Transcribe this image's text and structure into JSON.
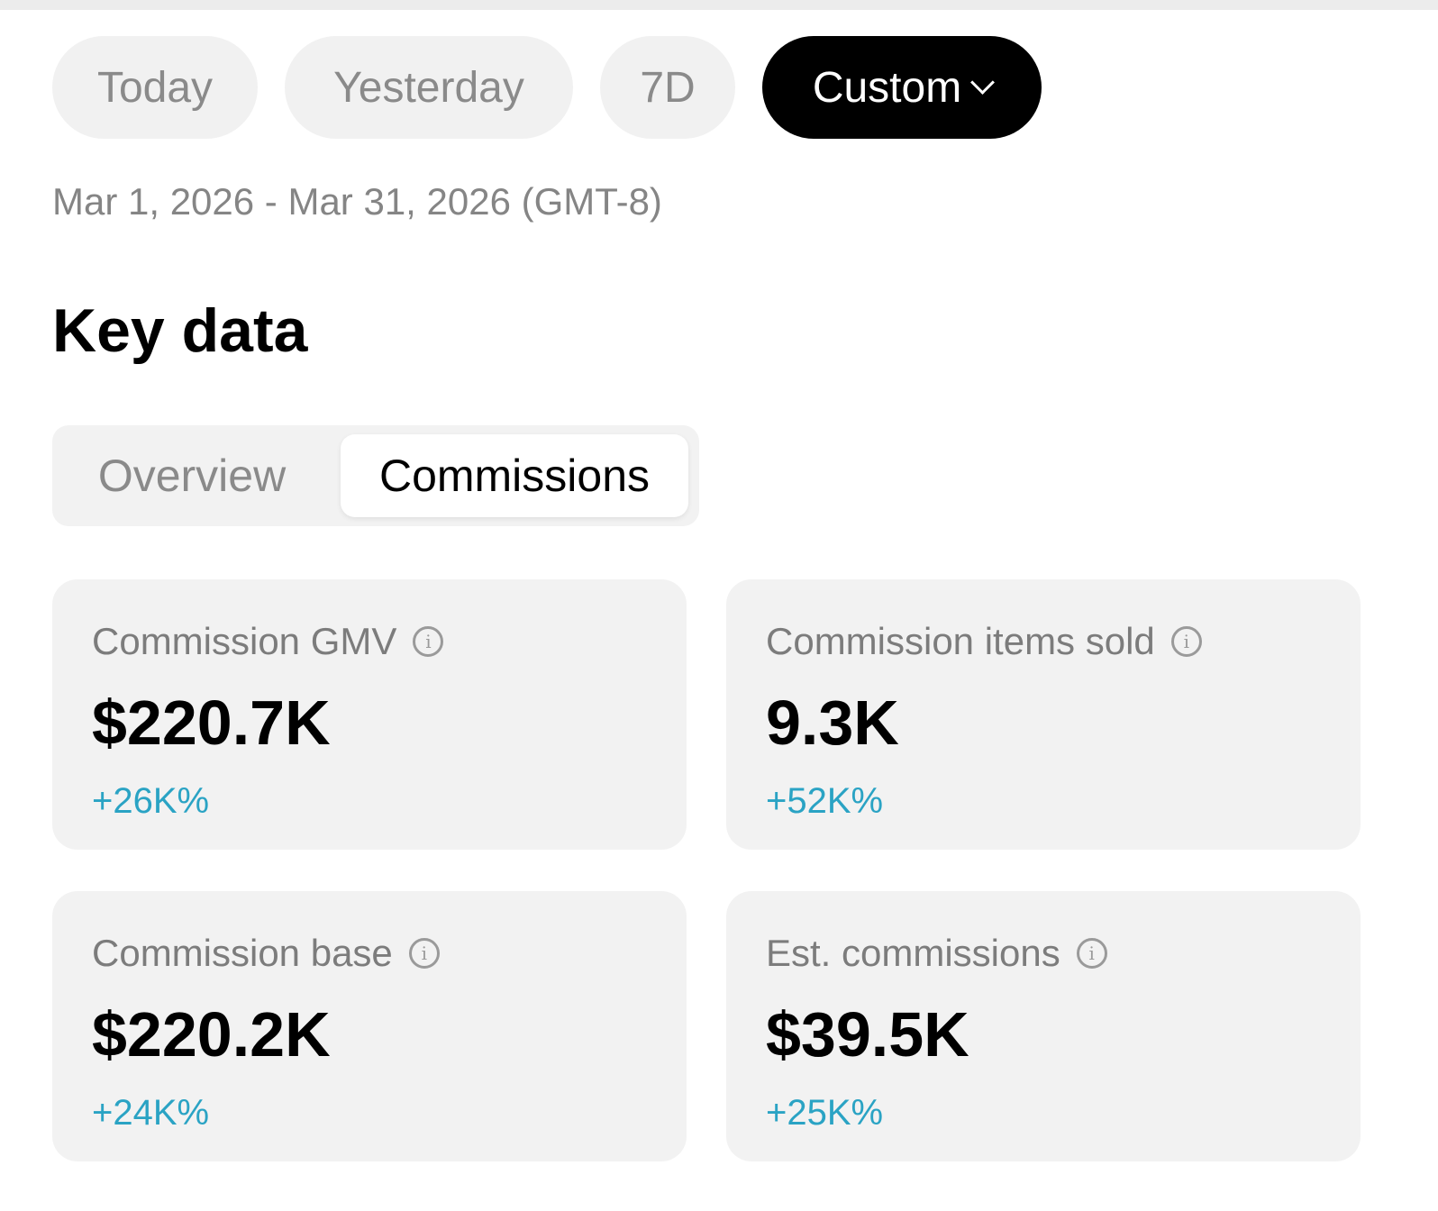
{
  "range_chips": [
    {
      "label": "Today",
      "active": false
    },
    {
      "label": "Yesterday",
      "active": false
    },
    {
      "label": "7D",
      "active": false
    },
    {
      "label": "Custom",
      "active": true
    }
  ],
  "date_range": "Mar 1, 2026 - Mar 31, 2026 (GMT-8)",
  "section_title": "Key data",
  "tabs": [
    {
      "label": "Overview",
      "selected": false
    },
    {
      "label": "Commissions",
      "selected": true
    }
  ],
  "metrics": [
    {
      "label": "Commission GMV",
      "value": "$220.7K",
      "change": "+26K%"
    },
    {
      "label": "Commission items sold",
      "value": "9.3K",
      "change": "+52K%"
    },
    {
      "label": "Commission base",
      "value": "$220.2K",
      "change": "+24K%"
    },
    {
      "label": "Est. commissions",
      "value": "$39.5K",
      "change": "+25K%"
    }
  ],
  "colors": {
    "positive_change": "#2aa3c4",
    "active_chip_bg": "#000000",
    "card_bg": "#f2f2f2"
  },
  "icons": {
    "info": "info-circle-icon",
    "dropdown": "chevron-down-icon"
  }
}
